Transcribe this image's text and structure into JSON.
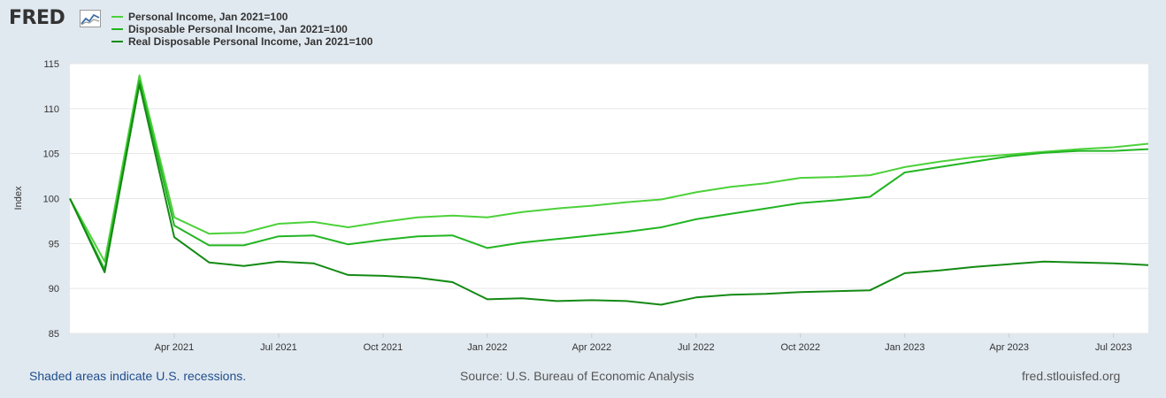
{
  "header": {
    "logo_text": "FRED",
    "logo_icon": "line-graph-icon"
  },
  "legend": [
    {
      "label": "Personal Income, Jan 2021=100",
      "color": "#4cd13a"
    },
    {
      "label": "Disposable Personal Income, Jan 2021=100",
      "color": "#22b522"
    },
    {
      "label": "Real Disposable Personal Income, Jan 2021=100",
      "color": "#138a13"
    }
  ],
  "footer": {
    "recession_note": "Shaded areas indicate U.S. recessions.",
    "source": "Source: U.S. Bureau of Economic Analysis",
    "site": "fred.stlouisfed.org"
  },
  "chart_data": {
    "type": "line",
    "ylabel": "Index",
    "xlabel": "",
    "ylim": [
      85,
      115
    ],
    "yticks": [
      85,
      90,
      95,
      100,
      105,
      110,
      115
    ],
    "x": [
      "2021-01",
      "2021-02",
      "2021-03",
      "2021-04",
      "2021-05",
      "2021-06",
      "2021-07",
      "2021-08",
      "2021-09",
      "2021-10",
      "2021-11",
      "2021-12",
      "2022-01",
      "2022-02",
      "2022-03",
      "2022-04",
      "2022-05",
      "2022-06",
      "2022-07",
      "2022-08",
      "2022-09",
      "2022-10",
      "2022-11",
      "2022-12",
      "2023-01",
      "2023-02",
      "2023-03",
      "2023-04",
      "2023-05",
      "2023-06",
      "2023-07",
      "2023-08"
    ],
    "xticks": [
      {
        "date": "2021-04",
        "label": "Apr 2021"
      },
      {
        "date": "2021-07",
        "label": "Jul 2021"
      },
      {
        "date": "2021-10",
        "label": "Oct 2021"
      },
      {
        "date": "2022-01",
        "label": "Jan 2022"
      },
      {
        "date": "2022-04",
        "label": "Apr 2022"
      },
      {
        "date": "2022-07",
        "label": "Jul 2022"
      },
      {
        "date": "2022-10",
        "label": "Oct 2022"
      },
      {
        "date": "2023-01",
        "label": "Jan 2023"
      },
      {
        "date": "2023-04",
        "label": "Apr 2023"
      },
      {
        "date": "2023-07",
        "label": "Jul 2023"
      }
    ],
    "grid": true,
    "series": [
      {
        "name": "Personal Income, Jan 2021=100",
        "color": "#4cd13a",
        "values": [
          100,
          93.0,
          113.7,
          97.9,
          96.1,
          96.2,
          97.2,
          97.4,
          96.8,
          97.4,
          97.9,
          98.1,
          97.9,
          98.5,
          98.9,
          99.2,
          99.6,
          99.9,
          100.7,
          101.3,
          101.7,
          102.3,
          102.4,
          102.6,
          103.5,
          104.1,
          104.6,
          104.9,
          105.2,
          105.5,
          105.7,
          106.1
        ]
      },
      {
        "name": "Disposable Personal Income, Jan 2021=100",
        "color": "#22b522",
        "values": [
          100,
          92.1,
          113.1,
          97.0,
          94.8,
          94.8,
          95.8,
          95.9,
          94.9,
          95.4,
          95.8,
          95.9,
          94.5,
          95.1,
          95.5,
          95.9,
          96.3,
          96.8,
          97.7,
          98.3,
          98.9,
          99.5,
          99.8,
          100.2,
          102.9,
          103.5,
          104.1,
          104.7,
          105.1,
          105.3,
          105.3,
          105.5
        ]
      },
      {
        "name": "Real Disposable Personal Income, Jan 2021=100",
        "color": "#138a13",
        "values": [
          100,
          91.8,
          112.7,
          95.7,
          92.9,
          92.5,
          93.0,
          92.8,
          91.5,
          91.4,
          91.2,
          90.7,
          88.8,
          88.9,
          88.6,
          88.7,
          88.6,
          88.2,
          89.0,
          89.3,
          89.4,
          89.6,
          89.7,
          89.8,
          91.7,
          92.0,
          92.4,
          92.7,
          93.0,
          92.9,
          92.8,
          92.6
        ]
      }
    ]
  }
}
